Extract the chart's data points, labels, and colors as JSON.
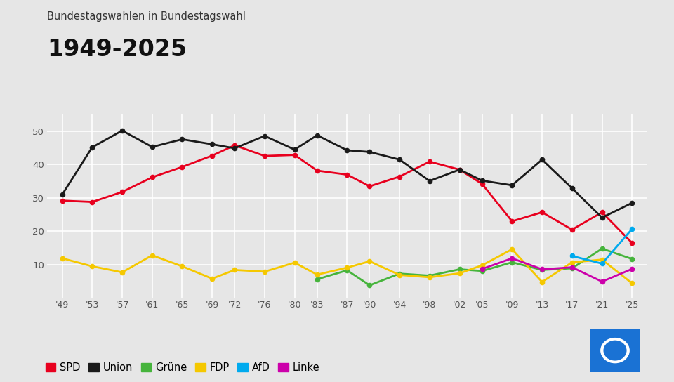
{
  "title_top": "Bundestagswahlen in Bundestagswahl",
  "title_main": "1949-2025",
  "years": [
    1949,
    1953,
    1957,
    1961,
    1965,
    1969,
    1972,
    1976,
    1980,
    1983,
    1987,
    1990,
    1994,
    1998,
    2002,
    2005,
    2009,
    2013,
    2017,
    2021,
    2025
  ],
  "year_labels": [
    "'49",
    "'53",
    "'57",
    "'61",
    "'65",
    "'69",
    "'72",
    "'76",
    "'80",
    "'83",
    "'87",
    "'90",
    "'94",
    "'98",
    "'02",
    "'05",
    "'09",
    "'13",
    "'17",
    "'21",
    "'25"
  ],
  "SPD": [
    29.2,
    28.8,
    31.8,
    36.2,
    39.3,
    42.7,
    45.8,
    42.6,
    42.9,
    38.2,
    37.0,
    33.5,
    36.4,
    40.9,
    38.5,
    34.2,
    23.0,
    25.7,
    20.5,
    25.7,
    16.5
  ],
  "Union": [
    31.0,
    45.2,
    50.2,
    45.3,
    47.6,
    46.1,
    44.9,
    48.6,
    44.5,
    48.8,
    44.3,
    43.8,
    41.5,
    35.1,
    38.5,
    35.2,
    33.8,
    41.5,
    32.9,
    24.1,
    28.5
  ],
  "Gruene": [
    null,
    null,
    null,
    null,
    null,
    null,
    null,
    null,
    null,
    5.6,
    8.3,
    3.8,
    7.3,
    6.7,
    8.6,
    8.1,
    10.7,
    8.4,
    8.9,
    14.8,
    11.7
  ],
  "FDP": [
    11.9,
    9.5,
    7.7,
    12.8,
    9.5,
    5.8,
    8.4,
    7.9,
    10.6,
    7.0,
    9.1,
    11.0,
    6.9,
    6.2,
    7.4,
    9.8,
    14.6,
    4.8,
    10.7,
    11.5,
    4.4
  ],
  "AfD": [
    null,
    null,
    null,
    null,
    null,
    null,
    null,
    null,
    null,
    null,
    null,
    null,
    null,
    null,
    null,
    null,
    null,
    null,
    12.6,
    10.3,
    20.7
  ],
  "Linke": [
    null,
    null,
    null,
    null,
    null,
    null,
    null,
    null,
    null,
    null,
    null,
    null,
    null,
    null,
    null,
    8.7,
    11.9,
    8.6,
    9.2,
    4.9,
    8.7
  ],
  "colors": {
    "SPD": "#e8001e",
    "Union": "#1a1a1a",
    "Gruene": "#46b43c",
    "FDP": "#f5c800",
    "AfD": "#00aaee",
    "Linke": "#cc00aa"
  },
  "legend_labels": {
    "SPD": "SPD",
    "Union": "Union",
    "Gruene": "Grüne",
    "FDP": "FDP",
    "AfD": "AfD",
    "Linke": "Linke"
  },
  "ylim": [
    0,
    55
  ],
  "yticks": [
    10,
    20,
    30,
    40,
    50
  ],
  "background_color": "#e6e6e6",
  "plot_background": "#e6e6e6",
  "grid_color": "#ffffff",
  "marker_size": 4.5,
  "line_width": 2.0
}
